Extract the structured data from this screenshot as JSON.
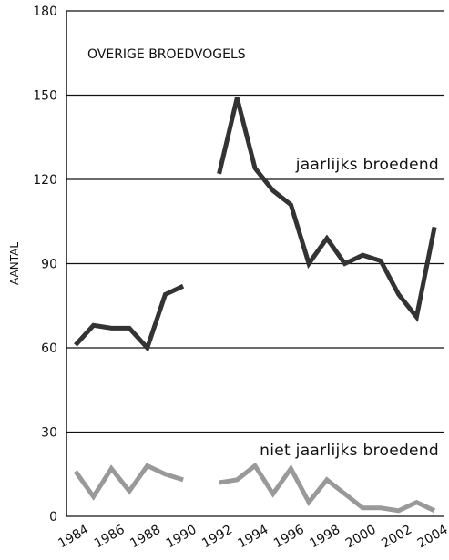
{
  "chart_data": {
    "type": "line",
    "title": "OVERIGE BROEDVOGELS",
    "ylabel": "AANTAL",
    "xlabel": "",
    "xlim": [
      1983.5,
      2004.5
    ],
    "ylim": [
      0,
      180
    ],
    "yticks": [
      0,
      30,
      60,
      90,
      120,
      150,
      180
    ],
    "xticks": [
      1984,
      1986,
      1988,
      1990,
      1992,
      1994,
      1996,
      1998,
      2000,
      2002,
      2004
    ],
    "grid": "horizontal",
    "series": [
      {
        "name": "jaarlijks broedend",
        "color": "#333333",
        "segments": [
          {
            "x": [
              1984,
              1985,
              1986,
              1987,
              1988,
              1989,
              1990
            ],
            "y": [
              61,
              68,
              67,
              67,
              60,
              79,
              82
            ]
          },
          {
            "x": [
              1992,
              1993,
              1994,
              1995,
              1996,
              1997,
              1998,
              1999,
              2000,
              2001,
              2002,
              2003,
              2004
            ],
            "y": [
              122,
              149,
              124,
              116,
              111,
              90,
              99,
              90,
              93,
              91,
              79,
              71,
              103
            ]
          }
        ]
      },
      {
        "name": "niet jaarlijks broedend",
        "color": "#999999",
        "segments": [
          {
            "x": [
              1984,
              1985,
              1986,
              1987,
              1988,
              1989,
              1990
            ],
            "y": [
              16,
              7,
              17,
              9,
              18,
              15,
              13
            ]
          },
          {
            "x": [
              1992,
              1993,
              1994,
              1995,
              1996,
              1997,
              1998,
              1999,
              2000,
              2001,
              2002,
              2003,
              2004
            ],
            "y": [
              12,
              13,
              18,
              8,
              17,
              5,
              13,
              8,
              3,
              3,
              2,
              5,
              2
            ]
          }
        ]
      }
    ]
  }
}
